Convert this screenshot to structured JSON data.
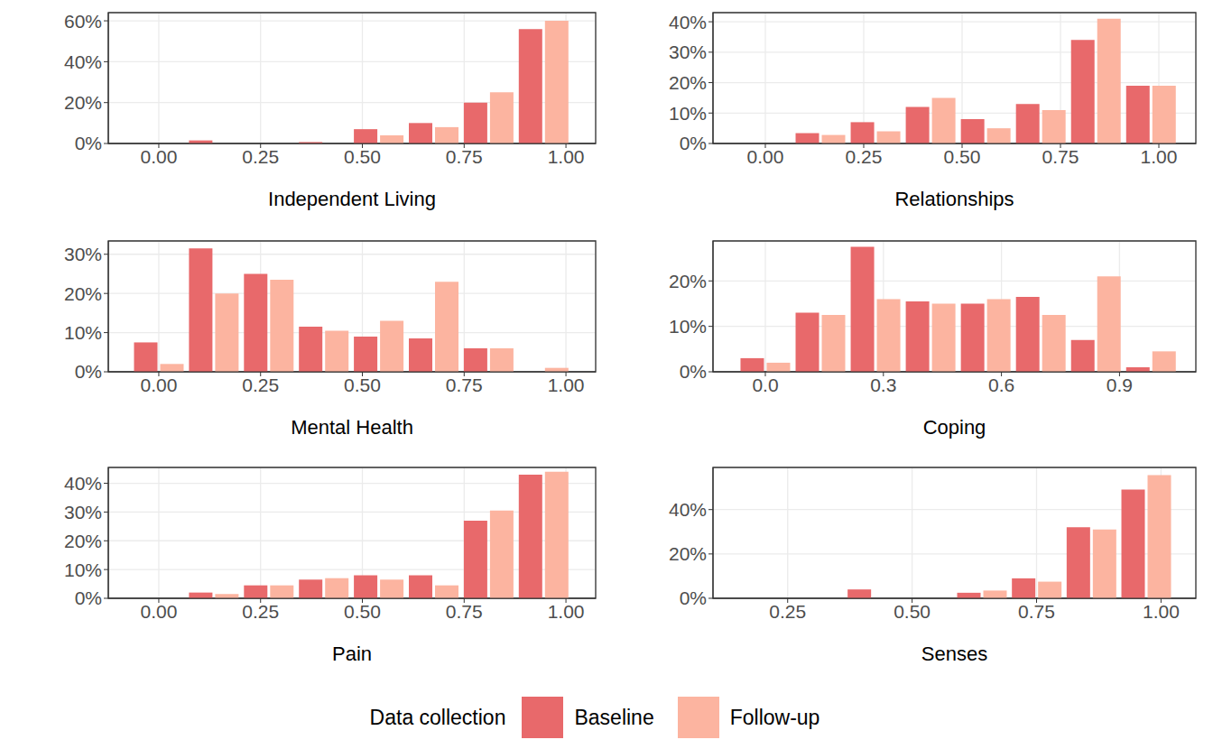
{
  "chart_data": [
    {
      "type": "bar",
      "x_label": "Independent Living",
      "grid": true,
      "x": [
        0,
        0.135,
        0.27,
        0.405,
        0.54,
        0.675,
        0.81,
        0.945
      ],
      "series": [
        {
          "name": "Baseline",
          "color": "#e8696b",
          "values": [
            0,
            1.5,
            0,
            0.7,
            7,
            10,
            20,
            56
          ]
        },
        {
          "name": "Follow-up",
          "color": "#fcb4a0",
          "values": [
            0,
            0,
            0,
            0,
            4,
            8,
            25,
            60
          ]
        }
      ],
      "xlim": [
        -0.124,
        1.073
      ],
      "xticks": [
        {
          "value": 0,
          "label": "0.00"
        },
        {
          "value": 0.25,
          "label": "0.25"
        },
        {
          "value": 0.5,
          "label": "0.50"
        },
        {
          "value": 0.75,
          "label": "0.75"
        },
        {
          "value": 1,
          "label": "1.00"
        }
      ],
      "ylim": [
        0,
        64
      ],
      "yticks": [
        {
          "value": 0,
          "label": "0%"
        },
        {
          "value": 20,
          "label": "20%"
        },
        {
          "value": 40,
          "label": "40%"
        },
        {
          "value": 60,
          "label": "60%"
        }
      ]
    },
    {
      "type": "bar",
      "x_label": "Relationships",
      "grid": true,
      "x": [
        0,
        0.14,
        0.28,
        0.42,
        0.56,
        0.7,
        0.84,
        0.98
      ],
      "series": [
        {
          "name": "Baseline",
          "color": "#e8696b",
          "values": [
            0,
            3.4,
            7,
            12,
            8,
            13,
            34,
            19
          ]
        },
        {
          "name": "Follow-up",
          "color": "#fcb4a0",
          "values": [
            0,
            2.8,
            4,
            15,
            5,
            11,
            41,
            19
          ]
        }
      ],
      "xlim": [
        -0.133,
        1.094
      ],
      "xticks": [
        {
          "value": 0,
          "label": "0.00"
        },
        {
          "value": 0.25,
          "label": "0.25"
        },
        {
          "value": 0.5,
          "label": "0.50"
        },
        {
          "value": 0.75,
          "label": "0.75"
        },
        {
          "value": 1,
          "label": "1.00"
        }
      ],
      "ylim": [
        0,
        43
      ],
      "yticks": [
        {
          "value": 0,
          "label": "0%"
        },
        {
          "value": 10,
          "label": "10%"
        },
        {
          "value": 20,
          "label": "20%"
        },
        {
          "value": 30,
          "label": "30%"
        },
        {
          "value": 40,
          "label": "40%"
        }
      ]
    },
    {
      "type": "bar",
      "x_label": "Mental Health",
      "grid": true,
      "x": [
        0,
        0.135,
        0.27,
        0.405,
        0.54,
        0.675,
        0.81,
        0.945
      ],
      "series": [
        {
          "name": "Baseline",
          "color": "#e8696b",
          "values": [
            7.5,
            31.5,
            25,
            11.5,
            9,
            8.5,
            6,
            0
          ]
        },
        {
          "name": "Follow-up",
          "color": "#fcb4a0",
          "values": [
            2,
            20,
            23.5,
            10.5,
            13,
            23,
            6,
            1
          ]
        }
      ],
      "xlim": [
        -0.124,
        1.073
      ],
      "xticks": [
        {
          "value": 0,
          "label": "0.00"
        },
        {
          "value": 0.25,
          "label": "0.25"
        },
        {
          "value": 0.5,
          "label": "0.50"
        },
        {
          "value": 0.75,
          "label": "0.75"
        },
        {
          "value": 1,
          "label": "1.00"
        }
      ],
      "ylim": [
        0,
        33.4
      ],
      "yticks": [
        {
          "value": 0,
          "label": "0%"
        },
        {
          "value": 10,
          "label": "10%"
        },
        {
          "value": 20,
          "label": "20%"
        },
        {
          "value": 30,
          "label": "30%"
        }
      ]
    },
    {
      "type": "bar",
      "x_label": "Coping",
      "grid": true,
      "x": [
        0,
        0.14,
        0.28,
        0.42,
        0.56,
        0.7,
        0.84,
        0.98
      ],
      "series": [
        {
          "name": "Baseline",
          "color": "#e8696b",
          "values": [
            3,
            13,
            27.5,
            15.5,
            15,
            16.5,
            7,
            1
          ]
        },
        {
          "name": "Follow-up",
          "color": "#fcb4a0",
          "values": [
            2,
            12.5,
            16,
            15,
            16,
            12.5,
            21,
            4.5
          ]
        }
      ],
      "xlim": [
        -0.133,
        1.094
      ],
      "xticks": [
        {
          "value": 0,
          "label": "0.0"
        },
        {
          "value": 0.3,
          "label": "0.3"
        },
        {
          "value": 0.6,
          "label": "0.6"
        },
        {
          "value": 0.9,
          "label": "0.9"
        }
      ],
      "ylim": [
        0,
        28.8
      ],
      "yticks": [
        {
          "value": 0,
          "label": "0%"
        },
        {
          "value": 10,
          "label": "10%"
        },
        {
          "value": 20,
          "label": "20%"
        }
      ]
    },
    {
      "type": "bar",
      "x_label": "Pain",
      "grid": true,
      "x": [
        0,
        0.135,
        0.27,
        0.405,
        0.54,
        0.675,
        0.81,
        0.945
      ],
      "series": [
        {
          "name": "Baseline",
          "color": "#e8696b",
          "values": [
            0,
            2,
            4.5,
            6.5,
            8,
            8,
            27,
            43
          ]
        },
        {
          "name": "Follow-up",
          "color": "#fcb4a0",
          "values": [
            0,
            1.5,
            4.5,
            7,
            6.5,
            4.5,
            30.5,
            44
          ]
        }
      ],
      "xlim": [
        -0.124,
        1.073
      ],
      "xticks": [
        {
          "value": 0,
          "label": "0.00"
        },
        {
          "value": 0.25,
          "label": "0.25"
        },
        {
          "value": 0.5,
          "label": "0.50"
        },
        {
          "value": 0.75,
          "label": "0.75"
        },
        {
          "value": 1,
          "label": "1.00"
        }
      ],
      "ylim": [
        0,
        45.5
      ],
      "yticks": [
        {
          "value": 0,
          "label": "0%"
        },
        {
          "value": 10,
          "label": "10%"
        },
        {
          "value": 20,
          "label": "20%"
        },
        {
          "value": 30,
          "label": "30%"
        },
        {
          "value": 40,
          "label": "40%"
        }
      ]
    },
    {
      "type": "bar",
      "x_label": "Senses",
      "grid": true,
      "x": [
        0.42,
        0.53,
        0.64,
        0.75,
        0.86,
        0.97
      ],
      "series": [
        {
          "name": "Baseline",
          "color": "#e8696b",
          "values": [
            4,
            0,
            2.5,
            9,
            32,
            49
          ]
        },
        {
          "name": "Follow-up",
          "color": "#fcb4a0",
          "values": [
            0,
            0,
            3.5,
            7.5,
            31,
            55.5
          ]
        }
      ],
      "xlim": [
        0.1,
        1.07
      ],
      "xticks": [
        {
          "value": 0.25,
          "label": "0.25"
        },
        {
          "value": 0.5,
          "label": "0.50"
        },
        {
          "value": 0.75,
          "label": "0.75"
        },
        {
          "value": 1,
          "label": "1.00"
        }
      ],
      "ylim": [
        0,
        59
      ],
      "yticks": [
        {
          "value": 0,
          "label": "0%"
        },
        {
          "value": 20,
          "label": "20%"
        },
        {
          "value": 40,
          "label": "40%"
        }
      ]
    }
  ],
  "legend_title": "Data collection"
}
